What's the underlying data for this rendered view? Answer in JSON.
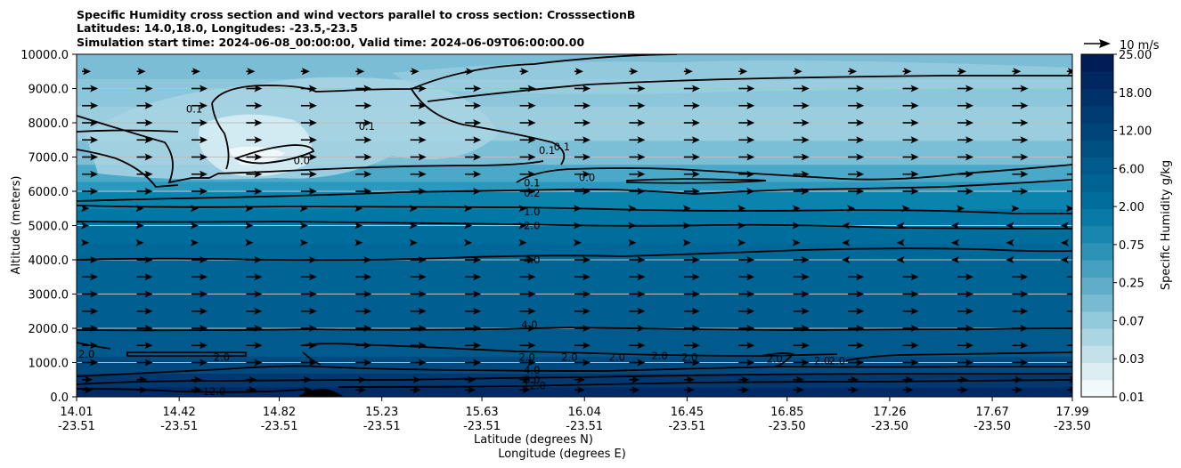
{
  "chart_data": {
    "type": "contourf_quiver",
    "title_lines": [
      "Specific Humidity cross section and wind vectors parallel to cross section: CrosssectionB",
      "Latitudes: 14.0,18.0, Longitudes: -23.5,-23.5",
      "Simulation start time: 2024-06-08_00:00:00, Valid time: 2024-06-09T06:00:00.00"
    ],
    "xlabel_1": "Latitude (degrees N)",
    "xlabel_2": "Longitude (degrees E)",
    "ylabel": "Altitude (meters)",
    "xlim": [
      14.01,
      17.99
    ],
    "ylim": [
      0,
      10000
    ],
    "x_ticks": [
      {
        "lat": "14.01",
        "lon": "-23.51"
      },
      {
        "lat": "14.42",
        "lon": "-23.51"
      },
      {
        "lat": "14.82",
        "lon": "-23.51"
      },
      {
        "lat": "15.23",
        "lon": "-23.51"
      },
      {
        "lat": "15.63",
        "lon": "-23.51"
      },
      {
        "lat": "16.04",
        "lon": "-23.51"
      },
      {
        "lat": "16.45",
        "lon": "-23.51"
      },
      {
        "lat": "16.85",
        "lon": "-23.50"
      },
      {
        "lat": "17.26",
        "lon": "-23.50"
      },
      {
        "lat": "17.67",
        "lon": "-23.50"
      },
      {
        "lat": "17.99",
        "lon": "-23.50"
      }
    ],
    "y_ticks": [
      "0.0",
      "1000.0",
      "2000.0",
      "3000.0",
      "4000.0",
      "5000.0",
      "6000.0",
      "7000.0",
      "8000.0",
      "9000.0",
      "10000.0"
    ],
    "y_tick_values": [
      0,
      1000,
      2000,
      3000,
      4000,
      5000,
      6000,
      7000,
      8000,
      9000,
      10000
    ],
    "colorbar": {
      "label": "Specific Humidity g/kg",
      "tick_labels": [
        "0.01",
        "0.03",
        "0.07",
        "0.25",
        "0.75",
        "2.00",
        "6.00",
        "12.00",
        "18.00",
        "25.00"
      ],
      "colors": [
        "#f1f9fb",
        "#dcedf3",
        "#c3e1ea",
        "#abd5e2",
        "#91c8da",
        "#78bbd1",
        "#5fadc8",
        "#46a0bf",
        "#2d92b6",
        "#1886ae",
        "#0979a5",
        "#006d9c",
        "#006493",
        "#005a8b",
        "#005082",
        "#00457a",
        "#003b71",
        "#003168",
        "#002760",
        "#001d58"
      ]
    },
    "quiver_key": {
      "label": "10 m/s",
      "speed": 10
    },
    "contour_labels": [
      {
        "text": "0.1",
        "lat": 14.48,
        "alt": 8400
      },
      {
        "text": "0.1",
        "lat": 15.17,
        "alt": 7900
      },
      {
        "text": "0.0",
        "lat": 14.91,
        "alt": 6900
      },
      {
        "text": "0.1",
        "lat": 15.89,
        "alt": 7200
      },
      {
        "text": "0.1",
        "lat": 15.95,
        "alt": 7300
      },
      {
        "text": "0.0",
        "lat": 16.05,
        "alt": 6400
      },
      {
        "text": "0.1",
        "lat": 15.83,
        "alt": 6250
      },
      {
        "text": "0.2",
        "lat": 15.83,
        "alt": 5950
      },
      {
        "text": "1.0",
        "lat": 15.83,
        "alt": 5400
      },
      {
        "text": "2.0",
        "lat": 15.83,
        "alt": 5000
      },
      {
        "text": "4.0",
        "lat": 15.83,
        "alt": 4000
      },
      {
        "text": "4.0",
        "lat": 15.82,
        "alt": 2100
      },
      {
        "text": "2.0",
        "lat": 14.05,
        "alt": 1250
      },
      {
        "text": "2.0",
        "lat": 14.59,
        "alt": 1150
      },
      {
        "text": "2.0",
        "lat": 15.81,
        "alt": 1150
      },
      {
        "text": "2.0",
        "lat": 15.98,
        "alt": 1150
      },
      {
        "text": "2.0",
        "lat": 16.17,
        "alt": 1150
      },
      {
        "text": "2.0",
        "lat": 16.34,
        "alt": 1200
      },
      {
        "text": "2.0",
        "lat": 16.46,
        "alt": 1150
      },
      {
        "text": "2.0",
        "lat": 16.8,
        "alt": 1100
      },
      {
        "text": "2.0",
        "lat": 16.99,
        "alt": 1050
      },
      {
        "text": "2.0",
        "lat": 17.05,
        "alt": 1050
      },
      {
        "text": "4.0",
        "lat": 15.83,
        "alt": 780
      },
      {
        "text": "8.0",
        "lat": 15.83,
        "alt": 500
      },
      {
        "text": "12.0",
        "lat": 14.56,
        "alt": 150
      },
      {
        "text": "12.0",
        "lat": 15.84,
        "alt": 320
      }
    ]
  }
}
